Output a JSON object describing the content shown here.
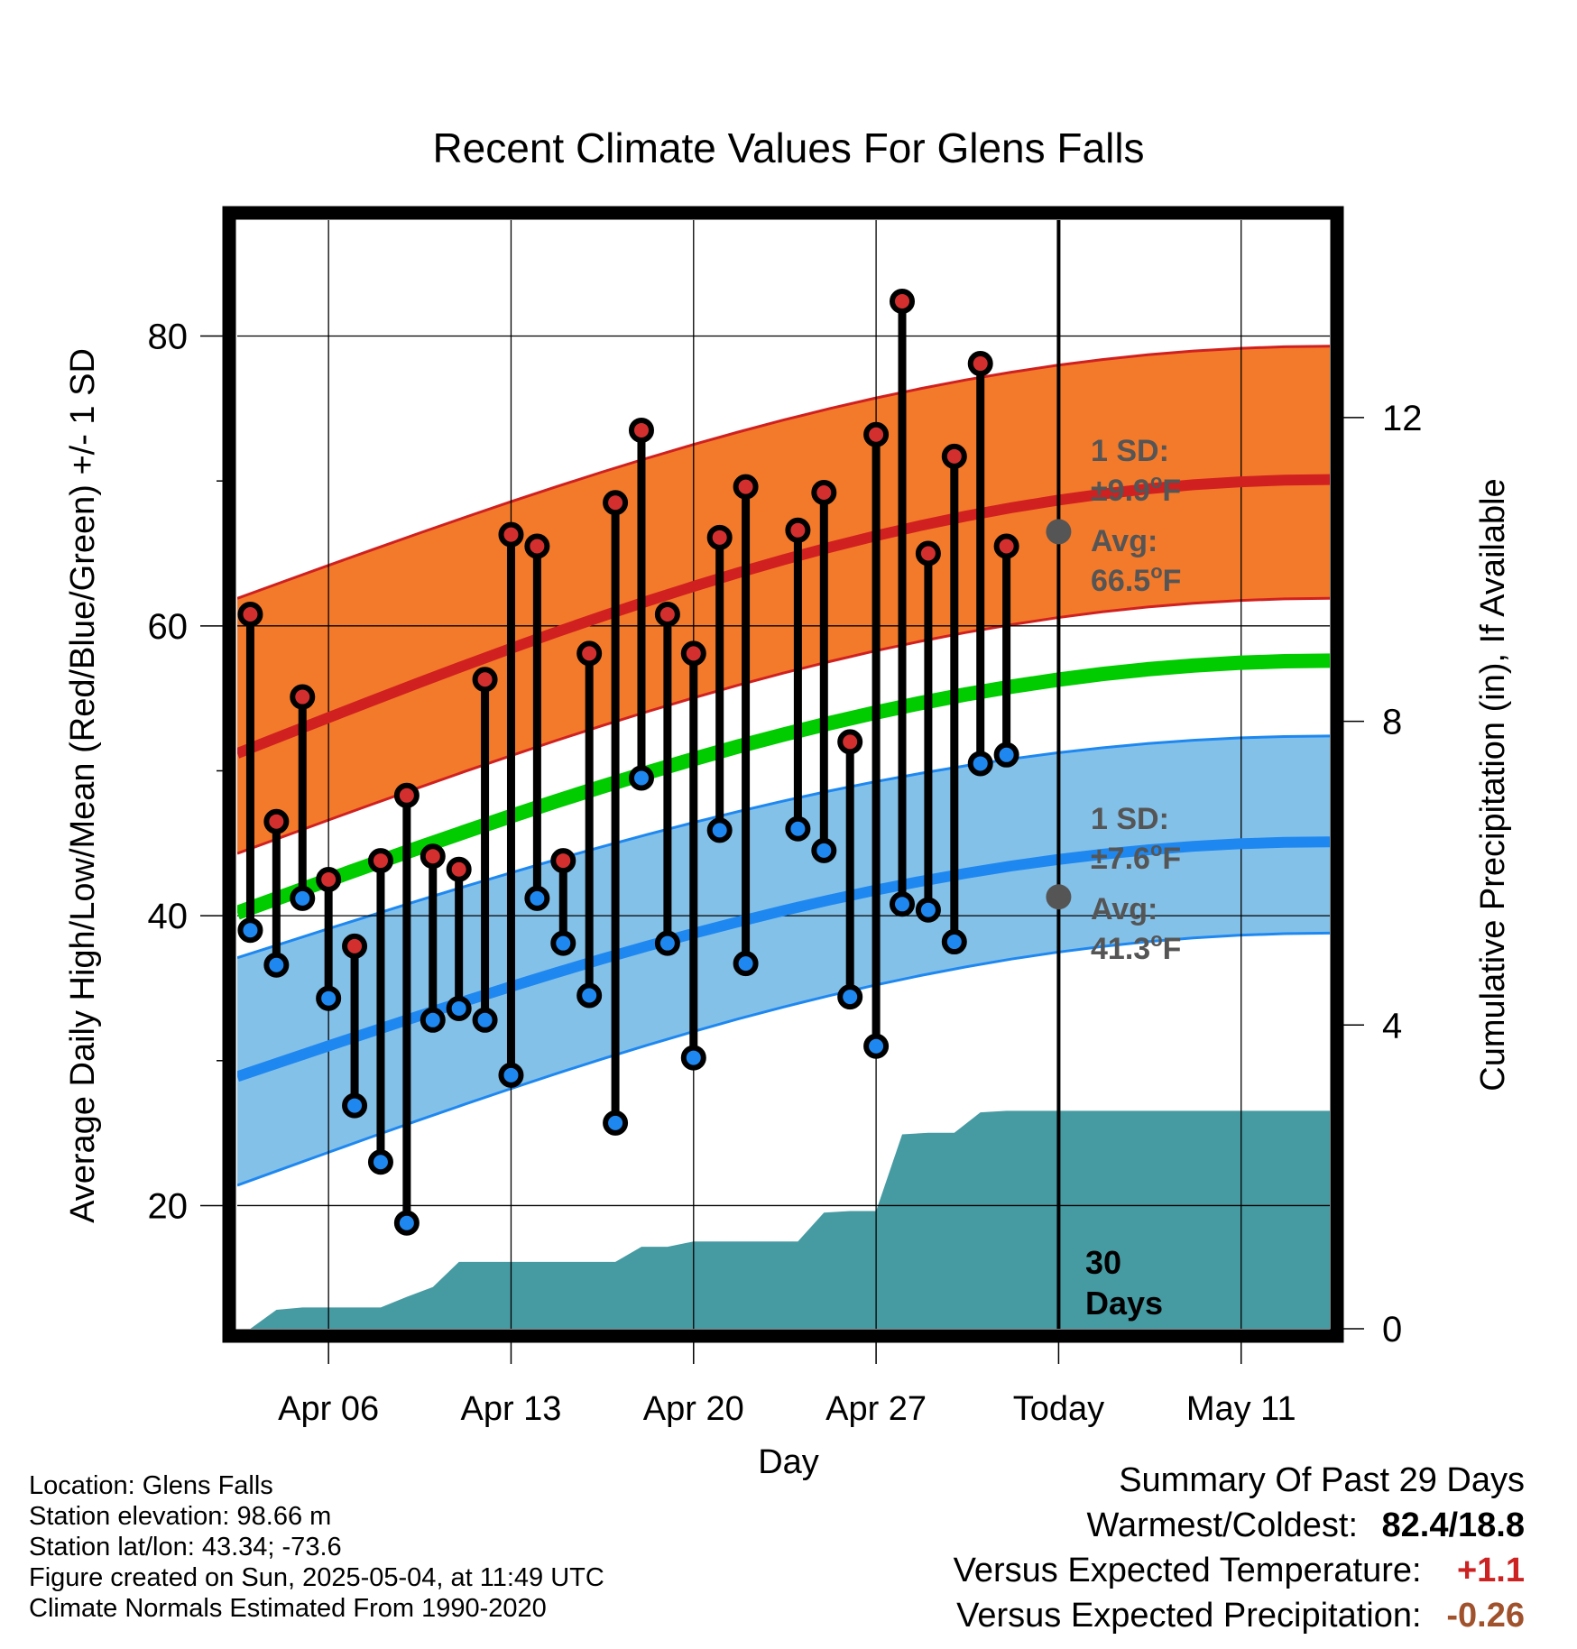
{
  "chart_data": {
    "type": "line",
    "title": "Recent Climate Values For Glens Falls",
    "xlabel": "Day",
    "ylabel": "Average Daily High/Low/Mean (Red/Blue/Green) +/- 1 SD",
    "ylabel_right": "Cumulative Precipitation (in), If Available",
    "ylim": [
      11.5,
      88
    ],
    "ylim_right": [
      0,
      14.6
    ],
    "yticks": [
      "20",
      "40",
      "60",
      "80"
    ],
    "yticks_right": [
      "0",
      "4",
      "8",
      "12"
    ],
    "xlim": [
      0.5,
      42.4
    ],
    "xticks": [
      {
        "day": 4,
        "label": "Apr 06"
      },
      {
        "day": 11,
        "label": "Apr 13"
      },
      {
        "day": 18,
        "label": "Apr 20"
      },
      {
        "day": 25,
        "label": "Apr 27"
      },
      {
        "day": 32,
        "label": "Today"
      },
      {
        "day": 39,
        "label": "May 11"
      }
    ],
    "today_day": 32,
    "normals": {
      "high_avg": [
        51.2,
        70.1
      ],
      "high_sd_upper": [
        61.9,
        79.3
      ],
      "high_sd_lower": [
        44.3,
        61.9
      ],
      "low_avg": [
        28.9,
        45.1
      ],
      "low_sd_upper": [
        37.1,
        52.4
      ],
      "low_sd_lower": [
        21.4,
        38.8
      ],
      "mean": [
        40.2,
        57.6
      ]
    },
    "observed": {
      "day": [
        1,
        2,
        3,
        4,
        5,
        6,
        7,
        8,
        9,
        10,
        11,
        12,
        13,
        14,
        15,
        16,
        17,
        18,
        19,
        20,
        21,
        22,
        23,
        24,
        25,
        26,
        27,
        28,
        29,
        30,
        31
      ],
      "high": [
        60.8,
        46.5,
        55.1,
        42.5,
        37.9,
        43.8,
        48.3,
        44.1,
        43.2,
        56.3,
        66.3,
        65.5,
        43.8,
        58.1,
        68.5,
        73.5,
        60.8,
        58.1,
        66.1,
        69.6,
        null,
        66.6,
        69.2,
        52.0,
        73.2,
        82.4,
        65.0,
        71.7,
        78.1,
        65.5,
        null
      ],
      "low": [
        39.0,
        36.6,
        41.2,
        34.3,
        26.9,
        23.0,
        18.8,
        32.8,
        33.6,
        32.8,
        29.0,
        41.2,
        38.1,
        34.5,
        25.7,
        49.5,
        38.1,
        30.2,
        45.9,
        36.7,
        null,
        46.0,
        44.5,
        34.4,
        31.0,
        40.8,
        40.4,
        38.2,
        50.5,
        51.1,
        null
      ]
    },
    "precip_cumulative": {
      "day": [
        1,
        2,
        3,
        4,
        5,
        6,
        7,
        8,
        9,
        10,
        11,
        12,
        13,
        14,
        15,
        16,
        17,
        18,
        19,
        20,
        21,
        22,
        23,
        24,
        25,
        26,
        27,
        28,
        29,
        30,
        31
      ],
      "values": [
        0.0,
        0.25,
        0.28,
        0.28,
        0.28,
        0.28,
        0.42,
        0.55,
        0.88,
        0.88,
        0.88,
        0.88,
        0.88,
        0.88,
        0.88,
        1.08,
        1.08,
        1.15,
        1.15,
        1.15,
        1.15,
        1.15,
        1.53,
        1.55,
        1.55,
        2.56,
        2.58,
        2.58,
        2.85,
        2.87,
        2.87
      ]
    },
    "annotations": {
      "high_sd_label": "1 SD:",
      "high_sd_value": "±9.9°F",
      "high_avg_label": "Avg:",
      "high_avg_value": "66.5°F",
      "high_today_avg": 66.5,
      "low_sd_label": "1 SD:",
      "low_sd_value": "±7.6°F",
      "low_avg_label": "Avg:",
      "low_avg_value": "41.3°F",
      "low_today_avg": 41.3,
      "days_line1": "30",
      "days_line2": "Days"
    },
    "colors": {
      "high": "#d02020",
      "high_band": "#f37a2a",
      "low": "#1e88f0",
      "low_band": "#84c1e8",
      "mean": "#00cc00",
      "precip": "#469ba3",
      "annotation": "#555555",
      "dot_high": "#d32f2f",
      "dot_low": "#1e88f0"
    }
  },
  "footer": {
    "location": "Location: Glens Falls",
    "elevation": "Station elevation: 98.66 m",
    "latlon": "Station lat/lon: 43.34; -73.6",
    "created": "Figure created on Sun, 2025-05-04, at 11:49 UTC",
    "normals": "Climate Normals Estimated From 1990-2020"
  },
  "summary": {
    "title": "Summary Of Past 29 Days",
    "warm_cold_label": "Warmest/Coldest:",
    "warm_cold_value": "82.4/18.8",
    "temp_label": "Versus Expected Temperature:",
    "temp_value": "+1.1",
    "temp_color": "#cc2222",
    "precip_label": "Versus Expected Precipitation:",
    "precip_value": "-0.26",
    "precip_color": "#a0522d"
  }
}
